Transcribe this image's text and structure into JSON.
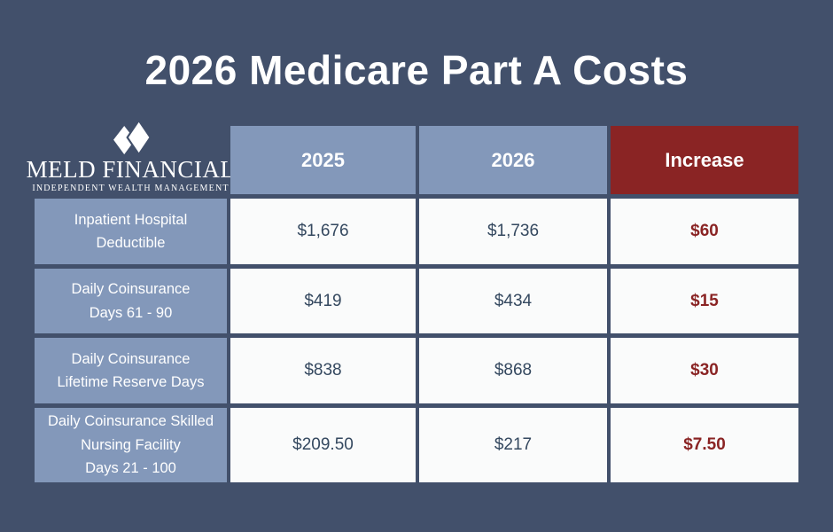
{
  "title": "2026 Medicare Part A Costs",
  "logo": {
    "icon": "meld-diamonds-icon",
    "name": "MELD FINANCIAL",
    "tagline": "INDEPENDENT WEALTH MANAGEMENT"
  },
  "table": {
    "column_headers": [
      "2025",
      "2026",
      "Increase"
    ],
    "rows": [
      {
        "label_lines": [
          "Inpatient Hospital",
          "Deductible"
        ],
        "y2025": "$1,676",
        "y2026": "$1,736",
        "increase": "$60"
      },
      {
        "label_lines": [
          "Daily Coinsurance",
          "Days 61 - 90"
        ],
        "y2025": "$419",
        "y2026": "$434",
        "increase": "$15"
      },
      {
        "label_lines": [
          "Daily Coinsurance",
          "Lifetime Reserve Days"
        ],
        "y2025": "$838",
        "y2026": "$868",
        "increase": "$30"
      },
      {
        "label_lines": [
          "Daily Coinsurance Skilled",
          "Nursing Facility",
          "Days 21 - 100"
        ],
        "y2025": "$209.50",
        "y2026": "$217",
        "increase": "$7.50"
      }
    ]
  },
  "chart_data": {
    "type": "table",
    "title": "2026 Medicare Part A Costs",
    "columns": [
      "",
      "2025",
      "2026",
      "Increase"
    ],
    "rows": [
      [
        "Inpatient Hospital Deductible",
        "$1,676",
        "$1,736",
        "$60"
      ],
      [
        "Daily Coinsurance Days 61 - 90",
        "$419",
        "$434",
        "$15"
      ],
      [
        "Daily Coinsurance Lifetime Reserve Days",
        "$838",
        "$868",
        "$30"
      ],
      [
        "Daily Coinsurance Skilled Nursing Facility Days 21 - 100",
        "$209.50",
        "$217",
        "$7.50"
      ]
    ]
  },
  "colors": {
    "background": "#42506b",
    "cell_blue": "#8398ba",
    "accent_red": "#8a2424",
    "cell_white": "#fafbfb",
    "value_text": "#34485f"
  }
}
